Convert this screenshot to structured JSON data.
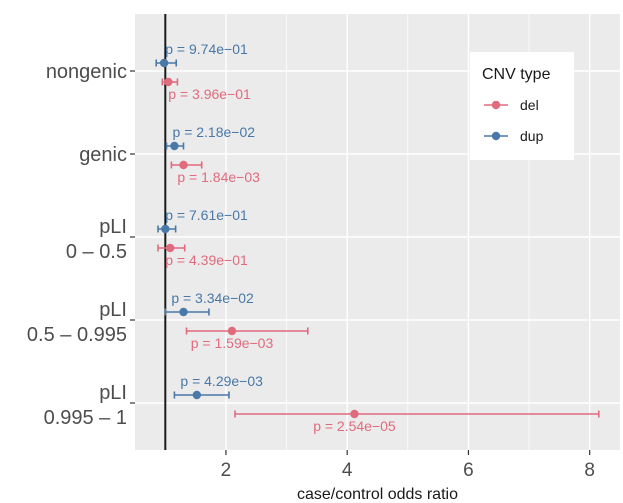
{
  "chart_data": {
    "type": "scatter",
    "subtype": "forest-plot",
    "xlabel": "case/control odds ratio",
    "ylabel": "",
    "xlim": [
      0.5,
      8.5
    ],
    "xticks": [
      2,
      4,
      6,
      8
    ],
    "reference_line": 1,
    "grid": true,
    "legend_title": "CNV type",
    "legend_position": "top-right",
    "categories": [
      {
        "label": [
          "nongenic"
        ]
      },
      {
        "label": [
          "genic"
        ]
      },
      {
        "label": [
          "pLI",
          "0 – 0.5"
        ]
      },
      {
        "label": [
          "pLI",
          "0.5 – 0.995"
        ]
      },
      {
        "label": [
          "pLI",
          "0.995 – 1"
        ]
      }
    ],
    "series": [
      {
        "name": "del",
        "color": "#e06b7d",
        "points": [
          {
            "or": 1.05,
            "lo": 0.95,
            "hi": 1.2,
            "p": "p = 3.96e−01"
          },
          {
            "or": 1.3,
            "lo": 1.1,
            "hi": 1.6,
            "p": "p = 1.84e−03"
          },
          {
            "or": 1.08,
            "lo": 0.88,
            "hi": 1.32,
            "p": "p = 4.39e−01"
          },
          {
            "or": 2.1,
            "lo": 1.35,
            "hi": 3.35,
            "p": "p = 1.59e−03"
          },
          {
            "or": 4.12,
            "lo": 2.15,
            "hi": 8.15,
            "p": "p = 2.54e−05"
          }
        ]
      },
      {
        "name": "dup",
        "color": "#4a78a8",
        "points": [
          {
            "or": 0.98,
            "lo": 0.85,
            "hi": 1.18,
            "p": "p = 9.74e−01"
          },
          {
            "or": 1.15,
            "lo": 1.02,
            "hi": 1.3,
            "p": "p = 2.18e−02"
          },
          {
            "or": 1.0,
            "lo": 0.88,
            "hi": 1.17,
            "p": "p = 7.61e−01"
          },
          {
            "or": 1.3,
            "lo": 1.0,
            "hi": 1.72,
            "p": "p = 3.34e−02"
          },
          {
            "or": 1.52,
            "lo": 1.15,
            "hi": 2.05,
            "p": "p = 4.29e−03"
          }
        ]
      }
    ]
  },
  "colors": {
    "panel_background": "#ebebeb",
    "grid": "#ffffff",
    "reference_line": "#1a1a1a"
  }
}
